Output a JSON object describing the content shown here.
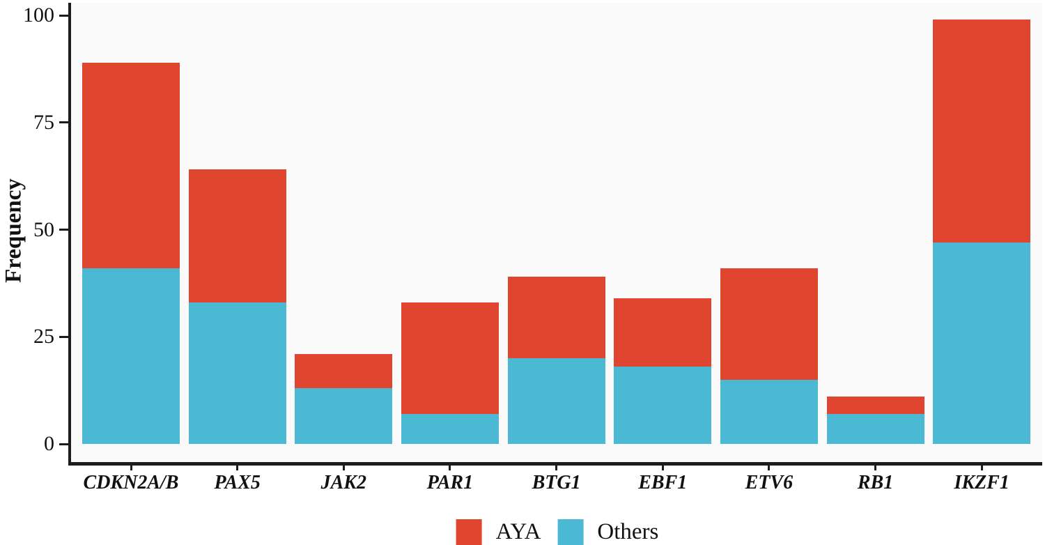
{
  "figure": {
    "background_color": "#ffffff",
    "panel_background_color": "#fafafa",
    "axis_color": "#1c1c1c",
    "text_color": "#111111"
  },
  "legend": {
    "position": "bottom-center",
    "items": [
      {
        "label": "AYA",
        "color": "#e0462f"
      },
      {
        "label": "Others",
        "color": "#4bb9d4"
      }
    ]
  },
  "chart_data": {
    "type": "bar",
    "stacked": true,
    "title": "",
    "xlabel": "",
    "ylabel": "Frequency",
    "categories": [
      "CDKN2A/B",
      "PAX5",
      "JAK2",
      "PAR1",
      "BTG1",
      "EBF1",
      "ETV6",
      "RB1",
      "IKZF1"
    ],
    "series": [
      {
        "name": "AYA",
        "color": "#e0462f",
        "values": [
          48,
          31,
          8,
          26,
          19,
          16,
          26,
          4,
          52
        ]
      },
      {
        "name": "Others",
        "color": "#4bb9d4",
        "values": [
          41,
          33,
          13,
          7,
          20,
          18,
          15,
          7,
          47
        ]
      }
    ],
    "stack_bottom_to_top": [
      "Others",
      "AYA"
    ],
    "totals": [
      89,
      64,
      21,
      33,
      39,
      34,
      41,
      11,
      99
    ],
    "y_ticks": [
      0,
      25,
      50,
      75,
      100
    ],
    "ylim": [
      0,
      100
    ],
    "grid": false,
    "legend_position": "bottom"
  }
}
